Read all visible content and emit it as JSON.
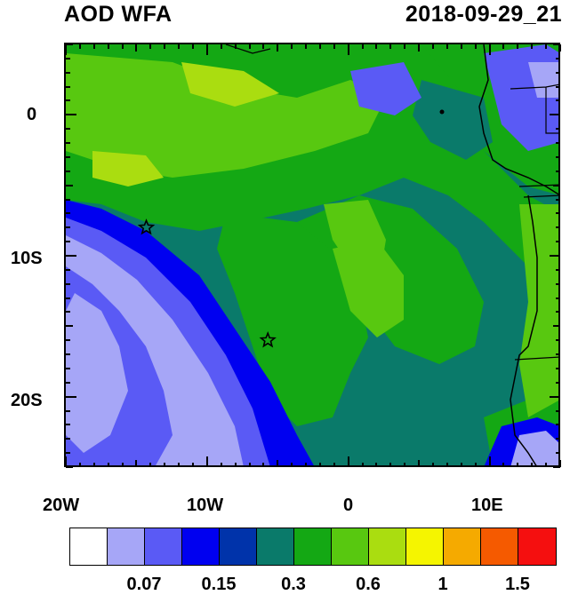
{
  "title_left": "AOD WFA",
  "title_right": "2018-09-29_21",
  "x_ticks": [
    "20W",
    "10W",
    "0",
    "10E"
  ],
  "y_ticks": [
    "0",
    "10S",
    "20S"
  ],
  "colorbar": {
    "colors": [
      "#ffffff",
      "#a6a6f7",
      "#5a5af5",
      "#0000f0",
      "#0033aa",
      "#0a7a6a",
      "#14a814",
      "#58c810",
      "#aadd10",
      "#f5f500",
      "#f5aa00",
      "#f55a00",
      "#f50f0f"
    ],
    "labels": [
      "0.07",
      "0.15",
      "0.3",
      "0.6",
      "1",
      "1.5"
    ]
  },
  "markers": [
    {
      "name": "star-marker-1",
      "lon": -14.3,
      "lat": -8.0
    },
    {
      "name": "star-marker-2",
      "lon": -5.7,
      "lat": -16.0
    }
  ],
  "colors": {
    "coast": "#000000"
  }
}
